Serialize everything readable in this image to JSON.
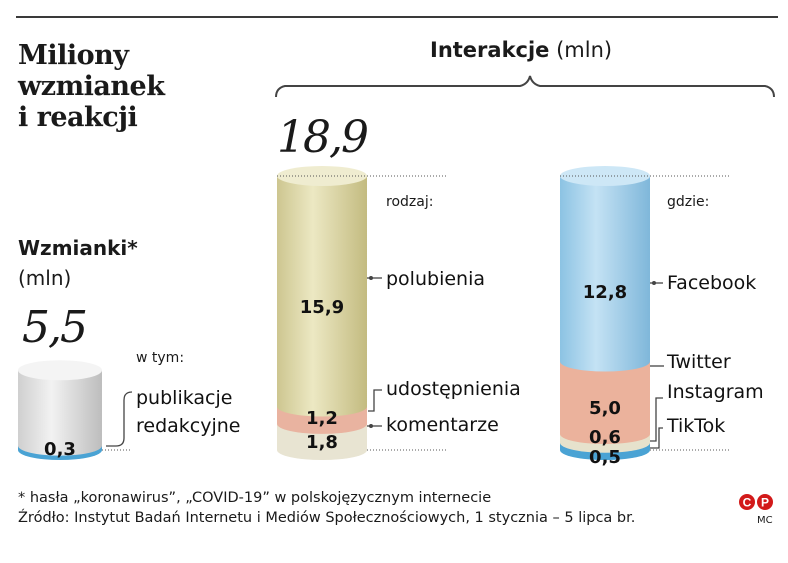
{
  "title": "Miliony wzmianek i reakcji",
  "title_lines": [
    "Miliony",
    "wzmianek",
    "i reakcji"
  ],
  "interactions_header": {
    "bold": "Interakcje",
    "unit": " (mln)"
  },
  "mentions_header": {
    "bold": "Wzmianki*",
    "unit": "(mln)"
  },
  "mentions_total": "5,5",
  "interactions_total": "18,9",
  "w_tym": "w tym:",
  "rodzaj": "rodzaj:",
  "gdzie": "gdzie:",
  "footnote": [
    "* hasła „koronawirus”, „COVID-19” w polskojęzycznym internecie",
    "Źródło: Instytut Badań Internetu i Mediów Społecznościowych, 1 stycznia – 5 lipca br."
  ],
  "credit": "MC",
  "chart_data": [
    {
      "type": "bar",
      "title": "Wzmianki* (mln)",
      "total": 5.5,
      "segments": [
        {
          "name": "publikacje redakcyjne",
          "value": 0.3,
          "label": "0,3",
          "color": "#4aa3d4"
        },
        {
          "name": "",
          "value": 5.2,
          "label": "",
          "color": "#e4e4e4"
        }
      ]
    },
    {
      "type": "bar",
      "title": "Interakcje (mln) — rodzaj",
      "total": 18.9,
      "segments": [
        {
          "name": "komentarze",
          "value": 1.8,
          "label": "1,8",
          "color": "#e8e4d2"
        },
        {
          "name": "udostępnienia",
          "value": 1.2,
          "label": "1,2",
          "color": "#e9b3a0"
        },
        {
          "name": "polubienia",
          "value": 15.9,
          "label": "15,9",
          "color": "#e1dcae"
        }
      ]
    },
    {
      "type": "bar",
      "title": "Interakcje (mln) — gdzie",
      "total": 18.9,
      "segments": [
        {
          "name": "TikTok",
          "value": 0.5,
          "label": "0,5",
          "color": "#4aa3d4"
        },
        {
          "name": "Instagram",
          "value": 0.6,
          "label": "0,6",
          "color": "#e6e2cc"
        },
        {
          "name": "Twitter",
          "value": 5.0,
          "label": "5,0",
          "color": "#ebb29c"
        },
        {
          "name": "Facebook",
          "value": 12.8,
          "label": "12,8",
          "color": "#a9d3ec"
        }
      ]
    }
  ]
}
